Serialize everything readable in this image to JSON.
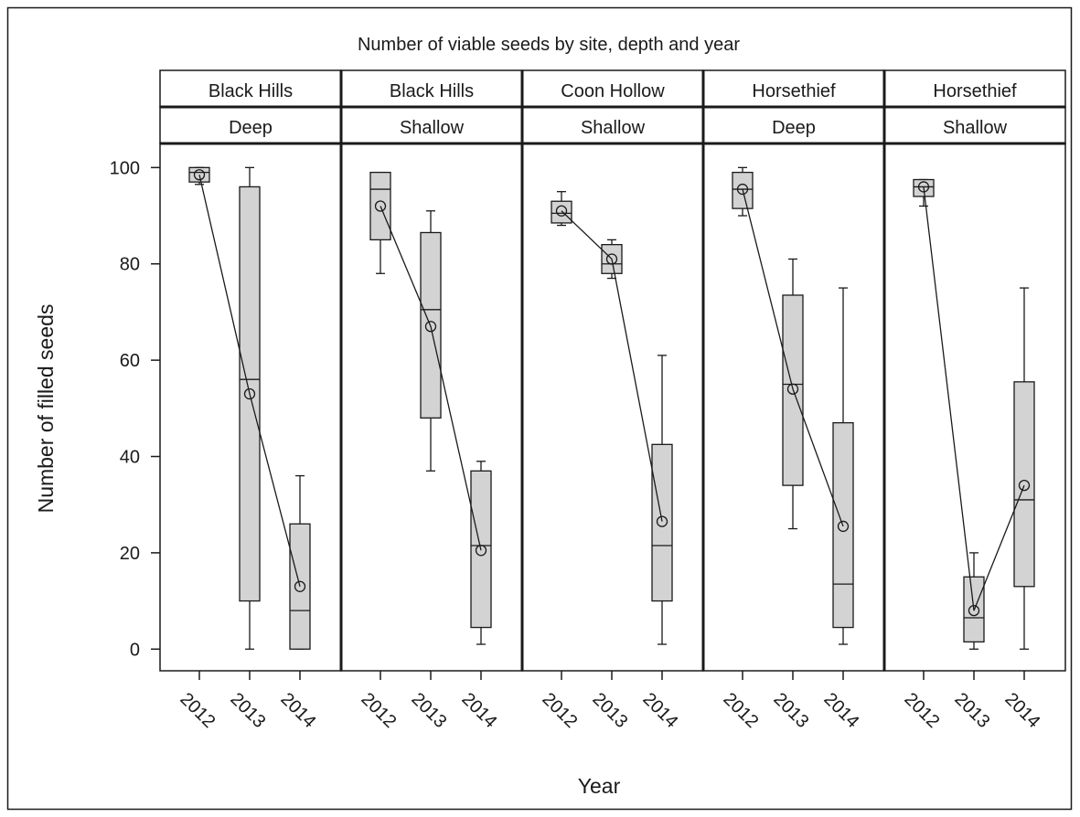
{
  "chart_data": {
    "type": "box",
    "title": "Number of viable seeds by site, depth and year",
    "xlabel": "Year",
    "ylabel": "Number of filled seeds",
    "ylim": [
      -4.5,
      105
    ],
    "yticks": [
      0,
      20,
      40,
      60,
      80,
      100
    ],
    "categories": [
      "2012",
      "2013",
      "2014"
    ],
    "box_fill": "#d3d3d3",
    "line_color": "#1a1a1a",
    "panels": [
      {
        "site": "Black Hills",
        "depth": "Deep",
        "boxes": [
          {
            "year": "2012",
            "min": 96.5,
            "q1": 97,
            "median": 99,
            "q3": 100,
            "max": 100,
            "mean": 98.5
          },
          {
            "year": "2013",
            "min": 0,
            "q1": 10,
            "median": 56,
            "q3": 96,
            "max": 100,
            "mean": 53
          },
          {
            "year": "2014",
            "min": 0,
            "q1": 0,
            "median": 8,
            "q3": 26,
            "max": 36,
            "mean": 13
          }
        ]
      },
      {
        "site": "Black Hills",
        "depth": "Shallow",
        "boxes": [
          {
            "year": "2012",
            "min": 78,
            "q1": 85,
            "median": 95.5,
            "q3": 99,
            "max": 99,
            "mean": 92
          },
          {
            "year": "2013",
            "min": 37,
            "q1": 48,
            "median": 70.5,
            "q3": 86.5,
            "max": 91,
            "mean": 67
          },
          {
            "year": "2014",
            "min": 1,
            "q1": 4.5,
            "median": 21.5,
            "q3": 37,
            "max": 39,
            "mean": 20.5
          }
        ]
      },
      {
        "site": "Coon Hollow",
        "depth": "Shallow",
        "boxes": [
          {
            "year": "2012",
            "min": 88,
            "q1": 88.5,
            "median": 90.5,
            "q3": 93,
            "max": 95,
            "mean": 91
          },
          {
            "year": "2013",
            "min": 77,
            "q1": 78,
            "median": 80,
            "q3": 84,
            "max": 85,
            "mean": 81
          },
          {
            "year": "2014",
            "min": 1,
            "q1": 10,
            "median": 21.5,
            "q3": 42.5,
            "max": 61,
            "mean": 26.5
          }
        ]
      },
      {
        "site": "Horsethief",
        "depth": "Deep",
        "boxes": [
          {
            "year": "2012",
            "min": 90,
            "q1": 91.5,
            "median": 95.5,
            "q3": 99,
            "max": 100,
            "mean": 95.5
          },
          {
            "year": "2013",
            "min": 25,
            "q1": 34,
            "median": 55,
            "q3": 73.5,
            "max": 81,
            "mean": 54
          },
          {
            "year": "2014",
            "min": 1,
            "q1": 4.5,
            "median": 13.5,
            "q3": 47,
            "max": 75,
            "mean": 25.5
          }
        ]
      },
      {
        "site": "Horsethief",
        "depth": "Shallow",
        "boxes": [
          {
            "year": "2012",
            "min": 92,
            "q1": 94,
            "median": 96,
            "q3": 97.5,
            "max": 97.5,
            "mean": 96
          },
          {
            "year": "2013",
            "min": 0,
            "q1": 1.5,
            "median": 6.5,
            "q3": 15,
            "max": 20,
            "mean": 8
          },
          {
            "year": "2014",
            "min": 0,
            "q1": 13,
            "median": 31,
            "q3": 55.5,
            "max": 75,
            "mean": 34
          }
        ]
      }
    ]
  }
}
